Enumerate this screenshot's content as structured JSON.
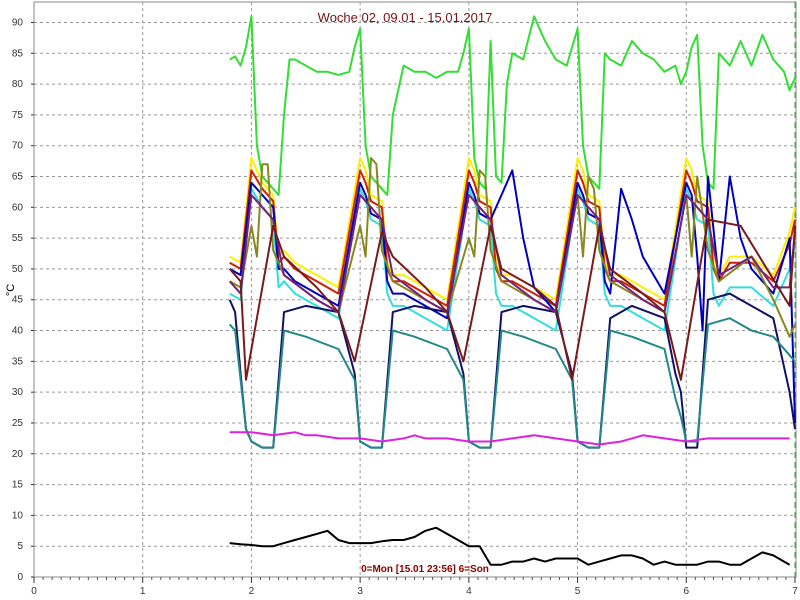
{
  "chart_data": {
    "type": "line",
    "title": "Woche 02, 09.01 - 15.01.2017",
    "ylabel": "°C",
    "footnote": "0=Mon [15.01 23:56] 6=Son",
    "xlim": [
      0,
      7
    ],
    "ylim": [
      0,
      93
    ],
    "x_ticks": [
      "0",
      "1",
      "2",
      "3",
      "4",
      "5",
      "6",
      "7"
    ],
    "y_ticks": [
      "0",
      "5",
      "10",
      "15",
      "20",
      "25",
      "30",
      "35",
      "40",
      "45",
      "50",
      "55",
      "60",
      "65",
      "70",
      "75",
      "80",
      "85",
      "90"
    ],
    "grid": true,
    "series": [
      {
        "color": "#33dd33",
        "x": [
          1.8,
          1.85,
          1.9,
          1.95,
          2.0,
          2.05,
          2.1,
          2.15,
          2.2,
          2.25,
          2.3,
          2.35,
          2.4,
          2.5,
          2.6,
          2.7,
          2.8,
          2.9,
          2.95,
          3.0,
          3.05,
          3.1,
          3.15,
          3.2,
          3.25,
          3.3,
          3.4,
          3.5,
          3.6,
          3.7,
          3.8,
          3.9,
          3.95,
          4.0,
          4.05,
          4.1,
          4.15,
          4.2,
          4.25,
          4.3,
          4.35,
          4.4,
          4.5,
          4.6,
          4.7,
          4.8,
          4.9,
          4.95,
          5.0,
          5.05,
          5.1,
          5.15,
          5.2,
          5.25,
          5.3,
          5.4,
          5.5,
          5.6,
          5.7,
          5.8,
          5.9,
          5.95,
          6.0,
          6.05,
          6.1,
          6.15,
          6.2,
          6.25,
          6.3,
          6.4,
          6.5,
          6.6,
          6.7,
          6.8,
          6.9,
          6.95,
          7.0
        ],
        "y": [
          84,
          84.5,
          83,
          86,
          91,
          70,
          65,
          64,
          63,
          62,
          75,
          84,
          84,
          83,
          82,
          82,
          81.5,
          82,
          86,
          89,
          70,
          65,
          64,
          63,
          62,
          75,
          83,
          82,
          82,
          81,
          82,
          82,
          85,
          89,
          68,
          64,
          63,
          87,
          65,
          64,
          80,
          85,
          84,
          91,
          87,
          84,
          83,
          86,
          89,
          70,
          65,
          64,
          63,
          85,
          84,
          83,
          87,
          85,
          84,
          82,
          83,
          80,
          82,
          86,
          88,
          70,
          64,
          63,
          85,
          83,
          87,
          83,
          88,
          84,
          82,
          79,
          81
        ]
      },
      {
        "color": "#ffee00",
        "x": [
          1.8,
          1.9,
          2.0,
          2.1,
          2.2,
          2.25,
          2.3,
          2.4,
          2.6,
          2.8,
          3.0,
          3.05,
          3.1,
          3.2,
          3.25,
          3.3,
          3.4,
          3.6,
          3.8,
          4.0,
          4.05,
          4.1,
          4.2,
          4.25,
          4.3,
          4.4,
          4.6,
          4.8,
          5.0,
          5.05,
          5.1,
          5.2,
          5.25,
          5.3,
          5.4,
          5.6,
          5.8,
          6.0,
          6.05,
          6.1,
          6.2,
          6.25,
          6.3,
          6.4,
          6.6,
          6.8,
          6.95,
          7.0
        ],
        "y": [
          52,
          51,
          68,
          64,
          62,
          52,
          53,
          51,
          49,
          47,
          68,
          66,
          62,
          61,
          51,
          49,
          49,
          47,
          45,
          68,
          66,
          62,
          61,
          51,
          49,
          49,
          47,
          45,
          68,
          66,
          62,
          61,
          51,
          49,
          49,
          47,
          45,
          68,
          66,
          62,
          61,
          51,
          49,
          52,
          52,
          49,
          56,
          60
        ]
      },
      {
        "color": "#cc2200",
        "x": [
          1.8,
          1.9,
          2.0,
          2.1,
          2.2,
          2.25,
          2.3,
          2.4,
          2.6,
          2.8,
          3.0,
          3.05,
          3.1,
          3.2,
          3.25,
          3.3,
          3.4,
          3.6,
          3.8,
          4.0,
          4.05,
          4.1,
          4.2,
          4.25,
          4.3,
          4.4,
          4.6,
          4.8,
          5.0,
          5.05,
          5.1,
          5.2,
          5.25,
          5.3,
          5.4,
          5.6,
          5.8,
          6.0,
          6.05,
          6.1,
          6.2,
          6.25,
          6.3,
          6.4,
          6.6,
          6.8,
          6.95,
          7.0
        ],
        "y": [
          51,
          50,
          66,
          63,
          61,
          51,
          52,
          50,
          48,
          46,
          66,
          64,
          61,
          60,
          50,
          48,
          48,
          46,
          44,
          66,
          64,
          61,
          60,
          50,
          48,
          48,
          46,
          44,
          66,
          64,
          61,
          60,
          50,
          48,
          48,
          46,
          44,
          66,
          64,
          61,
          60,
          50,
          48,
          51,
          51,
          48,
          54,
          58
        ]
      },
      {
        "color": "#33dddd",
        "x": [
          1.8,
          1.9,
          2.0,
          2.1,
          2.2,
          2.25,
          2.3,
          2.4,
          2.6,
          2.8,
          3.0,
          3.05,
          3.1,
          3.2,
          3.25,
          3.3,
          3.4,
          3.6,
          3.8,
          4.0,
          4.05,
          4.1,
          4.2,
          4.25,
          4.3,
          4.4,
          4.6,
          4.8,
          5.0,
          5.05,
          5.1,
          5.2,
          5.25,
          5.3,
          5.4,
          5.6,
          5.8,
          6.0,
          6.05,
          6.1,
          6.2,
          6.25,
          6.3,
          6.4,
          6.6,
          6.8,
          6.95,
          7.0
        ],
        "y": [
          46,
          45,
          63,
          60,
          58,
          47,
          48,
          46,
          44,
          42,
          63,
          61,
          58,
          57,
          46,
          44,
          44,
          42,
          40,
          63,
          61,
          58,
          57,
          46,
          44,
          44,
          42,
          40,
          63,
          61,
          58,
          57,
          46,
          44,
          44,
          42,
          40,
          63,
          61,
          58,
          57,
          46,
          44,
          47,
          47,
          44,
          50,
          54
        ]
      },
      {
        "color": "#0000bb",
        "x": [
          1.8,
          1.9,
          2.0,
          2.1,
          2.2,
          2.25,
          2.3,
          2.4,
          2.6,
          2.8,
          3.0,
          3.05,
          3.1,
          3.2,
          3.25,
          3.3,
          3.4,
          3.6,
          3.8,
          4.0,
          4.05,
          4.1,
          4.2,
          4.3,
          4.4,
          4.5,
          4.6,
          4.7,
          4.8,
          5.0,
          5.05,
          5.1,
          5.2,
          5.25,
          5.3,
          5.4,
          5.5,
          5.6,
          5.8,
          6.0,
          6.05,
          6.1,
          6.15,
          6.2,
          6.3,
          6.4,
          6.5,
          6.6,
          6.8,
          6.95,
          7.0
        ],
        "y": [
          50,
          49,
          64,
          62,
          60,
          50,
          50,
          48,
          46,
          44,
          64,
          62,
          59,
          58,
          48,
          46,
          46,
          44,
          42,
          64,
          62,
          59,
          58,
          62,
          66,
          55,
          47,
          45,
          43,
          64,
          62,
          59,
          58,
          48,
          46,
          63,
          58,
          52,
          46,
          64,
          62,
          52,
          40,
          65,
          48,
          65,
          55,
          50,
          46,
          55,
          25
        ]
      },
      {
        "color": "#111166",
        "x": [
          1.8,
          1.85,
          1.9,
          1.95,
          2.0,
          2.1,
          2.2,
          2.3,
          2.5,
          2.8,
          2.95,
          3.0,
          3.1,
          3.2,
          3.3,
          3.5,
          3.8,
          3.95,
          4.0,
          4.1,
          4.2,
          4.3,
          4.5,
          4.8,
          4.95,
          5.0,
          5.1,
          5.2,
          5.3,
          5.5,
          5.8,
          5.9,
          5.95,
          6.0,
          6.1,
          6.2,
          6.4,
          6.6,
          6.8,
          6.95,
          7.0
        ],
        "y": [
          45,
          43,
          33,
          24,
          22,
          21,
          21,
          43,
          44,
          43,
          33,
          22,
          21,
          21,
          43,
          44,
          43,
          33,
          22,
          21,
          21,
          43,
          44,
          43,
          33,
          22,
          21,
          21,
          42,
          44,
          42,
          33,
          30,
          21,
          21,
          45,
          46,
          44,
          42,
          30,
          24
        ]
      },
      {
        "color": "#228888",
        "x": [
          1.8,
          1.85,
          1.9,
          1.95,
          2.0,
          2.1,
          2.2,
          2.3,
          2.5,
          2.8,
          2.95,
          3.0,
          3.1,
          3.2,
          3.3,
          3.5,
          3.8,
          3.95,
          4.0,
          4.1,
          4.2,
          4.3,
          4.5,
          4.8,
          4.95,
          5.0,
          5.1,
          5.2,
          5.3,
          5.5,
          5.8,
          5.9,
          5.95,
          6.0,
          6.1,
          6.2,
          6.4,
          6.6,
          6.8,
          6.95,
          7.0
        ],
        "y": [
          41,
          40,
          32,
          24,
          22,
          21,
          21,
          40,
          39,
          37,
          32,
          22,
          21,
          21,
          40,
          39,
          37,
          32,
          22,
          21,
          21,
          40,
          39,
          37,
          32,
          22,
          21,
          21,
          40,
          39,
          37,
          29,
          26,
          22,
          22,
          41,
          42,
          40,
          39,
          36,
          35
        ]
      },
      {
        "color": "#888822",
        "x": [
          1.8,
          1.9,
          2.0,
          2.05,
          2.1,
          2.15,
          2.2,
          2.3,
          2.6,
          2.8,
          3.0,
          3.05,
          3.1,
          3.15,
          3.2,
          3.3,
          3.6,
          3.8,
          4.0,
          4.05,
          4.1,
          4.15,
          4.2,
          4.3,
          4.6,
          4.8,
          5.0,
          5.05,
          5.1,
          5.15,
          5.2,
          5.3,
          5.6,
          5.8,
          6.0,
          6.05,
          6.1,
          6.2,
          6.3,
          6.6,
          6.8,
          6.95,
          7.0
        ],
        "y": [
          48,
          47,
          57,
          52,
          67,
          67,
          53,
          49,
          45,
          43,
          57,
          52,
          68,
          67,
          53,
          48,
          45,
          43,
          55,
          52,
          66,
          65,
          53,
          48,
          45,
          43,
          62,
          52,
          65,
          63,
          53,
          48,
          45,
          43,
          62,
          52,
          65,
          53,
          48,
          52,
          45,
          39,
          41
        ]
      },
      {
        "color": "#772277",
        "x": [
          1.8,
          1.9,
          2.0,
          2.1,
          2.2,
          2.3,
          2.6,
          2.8,
          3.0,
          3.1,
          3.2,
          3.3,
          3.6,
          3.8,
          4.0,
          4.1,
          4.2,
          4.3,
          4.6,
          4.8,
          5.0,
          5.1,
          5.2,
          5.3,
          5.6,
          5.8,
          6.0,
          6.1,
          6.2,
          6.3,
          6.6,
          6.8,
          6.95,
          7.0
        ],
        "y": [
          48,
          46,
          62,
          60,
          58,
          49,
          45,
          43,
          62,
          60,
          58,
          49,
          45,
          43,
          62,
          60,
          58,
          49,
          45,
          43,
          62,
          60,
          58,
          49,
          45,
          43,
          62,
          60,
          58,
          49,
          52,
          47,
          47,
          56
        ]
      },
      {
        "color": "#7a1a1a",
        "x": [
          1.8,
          1.9,
          1.95,
          2.2,
          2.3,
          2.6,
          2.8,
          2.95,
          3.2,
          3.3,
          3.6,
          3.8,
          3.95,
          4.2,
          4.3,
          4.6,
          4.8,
          4.95,
          5.2,
          5.3,
          5.6,
          5.8,
          5.95,
          6.2,
          6.5,
          6.95,
          7.0
        ],
        "y": [
          50,
          48,
          32,
          57,
          52,
          47,
          43,
          35,
          56,
          52,
          47,
          43,
          35,
          57,
          50,
          47,
          44,
          32,
          57,
          50,
          46,
          43,
          32,
          58,
          57,
          44,
          57
        ]
      },
      {
        "color": "#dd22dd",
        "x": [
          1.8,
          2.0,
          2.2,
          2.4,
          2.5,
          2.6,
          2.8,
          3.0,
          3.2,
          3.4,
          3.5,
          3.6,
          3.8,
          4.0,
          4.2,
          4.4,
          4.6,
          4.8,
          5.0,
          5.2,
          5.4,
          5.6,
          5.8,
          6.0,
          6.2,
          6.4,
          6.6,
          6.8,
          6.95
        ],
        "y": [
          23.5,
          23.5,
          23,
          23.5,
          23,
          23,
          22.5,
          22.5,
          22,
          22.5,
          23,
          22.5,
          22.5,
          22,
          22,
          22.5,
          23,
          22.5,
          22,
          21.5,
          22,
          23,
          22.5,
          22,
          22.5,
          22.5,
          22.5,
          22.5,
          22.5
        ]
      },
      {
        "color": "#000000",
        "x": [
          1.8,
          1.9,
          2.0,
          2.1,
          2.2,
          2.3,
          2.4,
          2.5,
          2.6,
          2.7,
          2.8,
          2.9,
          3.0,
          3.1,
          3.2,
          3.3,
          3.4,
          3.5,
          3.6,
          3.7,
          3.8,
          3.9,
          4.0,
          4.1,
          4.2,
          4.3,
          4.4,
          4.5,
          4.6,
          4.7,
          4.8,
          4.9,
          5.0,
          5.1,
          5.2,
          5.3,
          5.4,
          5.5,
          5.6,
          5.7,
          5.8,
          5.9,
          6.0,
          6.1,
          6.2,
          6.3,
          6.4,
          6.5,
          6.6,
          6.7,
          6.8,
          6.9,
          6.95
        ],
        "y": [
          5.5,
          5.3,
          5.2,
          5,
          5,
          5.5,
          6,
          6.5,
          7,
          7.5,
          6,
          5.5,
          5.5,
          5.5,
          5.8,
          6,
          6,
          6.5,
          7.5,
          8,
          7,
          6,
          5,
          5,
          2,
          2,
          2.5,
          2.5,
          3,
          2.5,
          3,
          3,
          3,
          2,
          2.5,
          3,
          3.5,
          3.5,
          3,
          2,
          2.5,
          2,
          2,
          2,
          2.5,
          2.5,
          2,
          2,
          3,
          4,
          3.5,
          2.5,
          2
        ]
      }
    ]
  }
}
